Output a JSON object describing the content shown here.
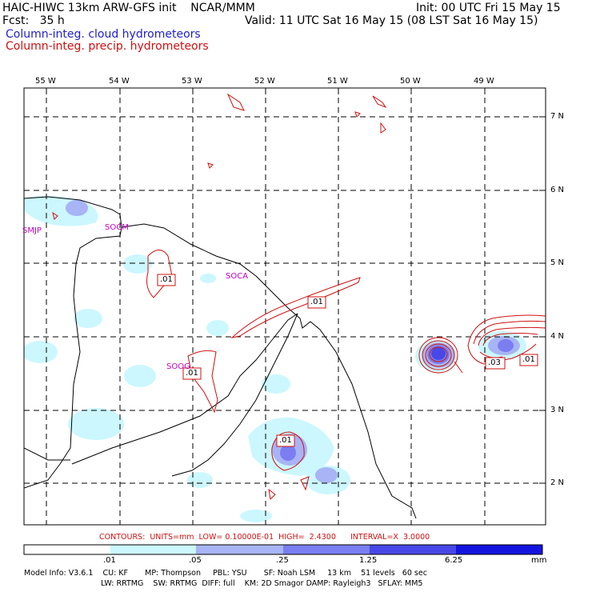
{
  "header": {
    "title": "HAIC-HIWC 13km ARW-GFS init    NCAR/MMM",
    "init": "Init: 00 UTC Fri 15 May 15",
    "fcst": "Fcst:   35 h",
    "valid": "Valid: 11 UTC Sat 16 May 15 (08 LST Sat 16 May 15)",
    "legend_cloud": "Column-integ. cloud hydrometeors",
    "legend_precip": "Column-integ. precip. hydrometeors"
  },
  "colors": {
    "cloud_line": "#2020d0",
    "precip_line": "#d01010",
    "shade_1": "#ccf7ff",
    "shade_2": "#a8b4f5",
    "shade_3": "#7a7ef0",
    "shade_4": "#4848e8",
    "shade_5": "#1414e0"
  },
  "map": {
    "lon_labels": [
      "55 W",
      "54 W",
      "53 W",
      "52 W",
      "51 W",
      "50 W",
      "49 W"
    ],
    "lat_labels": [
      "7 N",
      "6 N",
      "5 N",
      "4 N",
      "3 N",
      "2 N"
    ],
    "stations": [
      "SMJP",
      "SOCM",
      "SOCA",
      "SOOG"
    ],
    "contour_labels": [
      ".01",
      ".01",
      ".01",
      ".01",
      ".03",
      ".01"
    ]
  },
  "contours_info": "CONTOURS:  UNITS=mm  LOW= 0.10000E-01  HIGH=  2.4300      INTERVAL=X  3.0000",
  "colorbar": {
    "ticks": [
      ".01",
      ".05",
      ".25",
      "1.25",
      "6.25"
    ],
    "unit": "mm"
  },
  "model_info": {
    "line1": "Model Info: V3.6.1    CU: KF       MP: Thompson     PBL: YSU       SF: Noah LSM     13 km    51 levels   60 sec",
    "line2": "LW: RRTMG    SW: RRTMG  DIFF: full    KM: 2D Smagor DAMP: Rayleigh3   SFLAY: MM5"
  }
}
